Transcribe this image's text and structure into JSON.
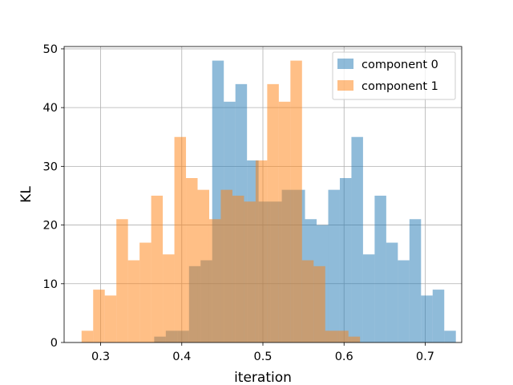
{
  "chart_data": {
    "type": "histogram",
    "title": "",
    "xlabel": "iteration",
    "ylabel": "KL",
    "xlim": [
      0.255,
      0.745
    ],
    "ylim": [
      0,
      50.4
    ],
    "xticks": [
      0.3,
      0.4,
      0.5,
      0.6,
      0.7
    ],
    "xtick_labels": [
      "0.3",
      "0.4",
      "0.5",
      "0.6",
      "0.7"
    ],
    "yticks": [
      0,
      10,
      20,
      30,
      40,
      50
    ],
    "ytick_labels": [
      "0",
      "10",
      "20",
      "30",
      "40",
      "50"
    ],
    "grid": true,
    "legend_position": "top-right",
    "series": [
      {
        "name": "component 0",
        "color": "#1f77b4",
        "alpha": 0.5,
        "bin_start": 0.366,
        "bin_width": 0.0143,
        "values": [
          1,
          2,
          2,
          13,
          14,
          48,
          41,
          44,
          31,
          24,
          24,
          26,
          26,
          21,
          20,
          26,
          28,
          35,
          15,
          25,
          17,
          14,
          21,
          8,
          9,
          2
        ]
      },
      {
        "name": "component 1",
        "color": "#ff7f0e",
        "alpha": 0.5,
        "bin_start": 0.2765,
        "bin_width": 0.0143,
        "values": [
          2,
          9,
          8,
          21,
          14,
          17,
          25,
          15,
          35,
          28,
          26,
          21,
          26,
          25,
          24,
          31,
          44,
          41,
          48,
          14,
          13,
          2,
          2,
          1
        ]
      }
    ]
  }
}
